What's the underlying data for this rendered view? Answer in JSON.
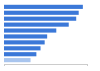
{
  "chart_data": {
    "type": "bar",
    "orientation": "horizontal",
    "categories": [
      null,
      null,
      null,
      null,
      null,
      null,
      null,
      null,
      null,
      null
    ],
    "values": [
      95,
      90,
      87,
      78,
      63,
      52,
      49,
      44,
      39,
      32
    ],
    "colors": [
      "#3b78d8",
      "#3b78d8",
      "#3b78d8",
      "#3b78d8",
      "#3b78d8",
      "#3b78d8",
      "#3b78d8",
      "#3b78d8",
      "#3b78d8",
      "#a9c5ee"
    ],
    "xlim": [
      0,
      100
    ],
    "xticks": [
      0,
      100
    ],
    "grid": false,
    "tick_labels": false
  }
}
